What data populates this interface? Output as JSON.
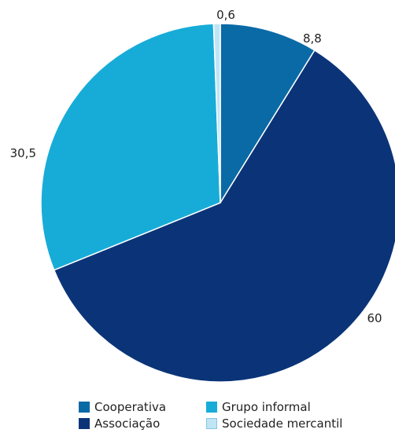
{
  "chart_data": {
    "type": "pie",
    "title": "",
    "slices": [
      {
        "name": "Cooperativa",
        "value": 8.8,
        "label": "8,8",
        "color": "#0a6aa6"
      },
      {
        "name": "Associação",
        "value": 60,
        "label": "60",
        "color": "#0b3478"
      },
      {
        "name": "Grupo informal",
        "value": 30.5,
        "label": "30,5",
        "color": "#17acd8"
      },
      {
        "name": "Sociedade mercantil",
        "value": 0.6,
        "label": "0,6",
        "color": "#bfe5f5"
      }
    ],
    "legend": {
      "placement": "bottom",
      "items": [
        "Cooperativa",
        "Associação",
        "Grupo informal",
        "Sociedade mercantil"
      ]
    }
  }
}
